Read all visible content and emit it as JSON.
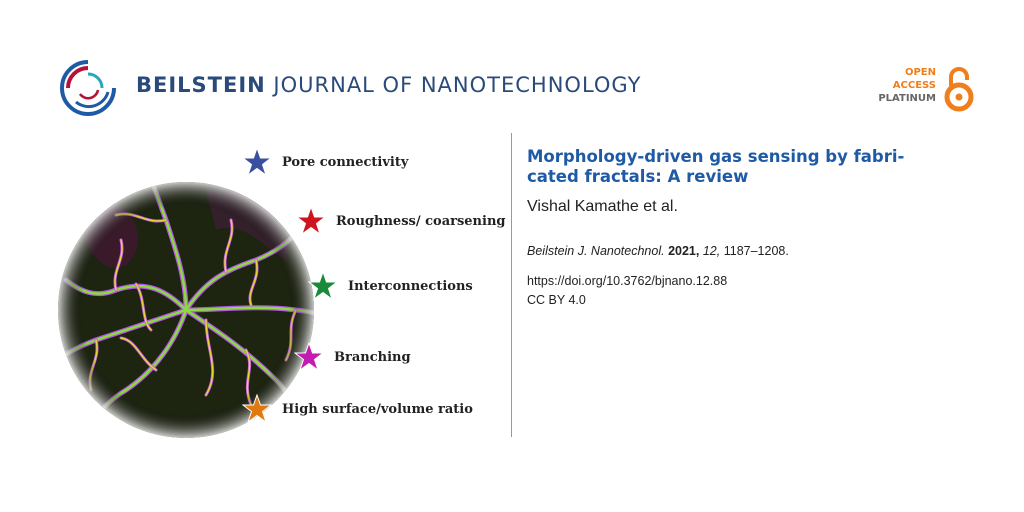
{
  "header": {
    "journal_bold": "BEILSTEIN",
    "journal_rest": "JOURNAL OF NANOTECHNOLOGY",
    "open_access_line1": "OPEN",
    "open_access_line2": "ACCESS",
    "open_access_line3": "PLATINUM",
    "icons": [
      "journal-logo-icon",
      "open-access-lock-icon"
    ]
  },
  "figure": {
    "legend": [
      {
        "label": "Pore connectivity",
        "star_color": "#3b4fa0",
        "icon": "star-icon"
      },
      {
        "label": "Roughness/ coarsening",
        "star_color": "#d0141e",
        "icon": "star-icon"
      },
      {
        "label": "Interconnections",
        "star_color": "#1a8a3a",
        "icon": "star-icon"
      },
      {
        "label": "Branching",
        "star_color": "#c21cb0",
        "icon": "star-icon"
      },
      {
        "label": "High surface/volume ratio",
        "star_color": "#e07a10",
        "icon": "star-icon"
      }
    ]
  },
  "article": {
    "title_line1": "Morphology-driven gas sensing by fabri-",
    "title_line2": "cated fractals: A review",
    "authors": "Vishal Kamathe et al.",
    "citation_journal": "Beilstein J. Nanotechnol.",
    "citation_year": "2021,",
    "citation_volume": "12,",
    "citation_pages": "1187–1208.",
    "doi": "https://doi.org/10.3762/bjnano.12.88",
    "license": "CC BY 4.0"
  },
  "colors": {
    "title": "#1e5aa5",
    "brand_navy": "#2a4a7a",
    "open_access": "#f07e1b"
  }
}
